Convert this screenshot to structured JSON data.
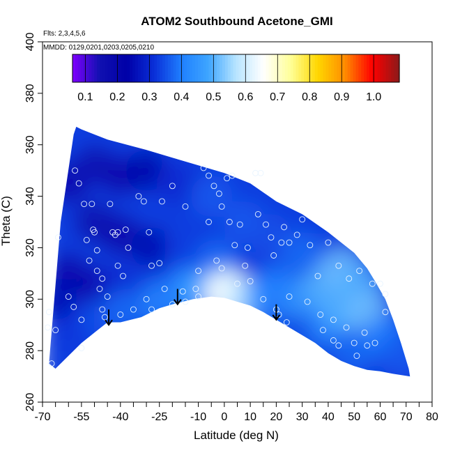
{
  "chart_data": {
    "type": "heatmap",
    "title": "ATOM2 Southbound Acetone_GMI",
    "annotations": {
      "flights": "Flts: 2,3,4,5,6",
      "dates": "MMDD: 0129,0201,0203,0205,0210"
    },
    "xlabel": "Latitude (deg N)",
    "ylabel": "Theta (C)",
    "xlim": [
      -70,
      80
    ],
    "ylim": [
      260,
      400
    ],
    "xticks_labeled": [
      -70,
      -55,
      -40,
      -25,
      -10,
      0,
      10,
      20,
      30,
      40,
      50,
      60,
      70,
      80
    ],
    "xticks_minor": [
      -65,
      -60,
      -50,
      -45,
      -35,
      -30,
      -20,
      -15,
      -5,
      5,
      15,
      25,
      35,
      45,
      55,
      65,
      75
    ],
    "yticks": [
      260,
      280,
      300,
      320,
      340,
      360,
      380,
      400
    ],
    "colorbar": {
      "ticks": [
        0.1,
        0.2,
        0.3,
        0.4,
        0.5,
        0.6,
        0.7,
        0.8,
        0.9,
        1.0
      ],
      "tick_labels": [
        "0.1",
        "0.2",
        "0.3",
        "0.4",
        "0.5",
        "0.6",
        "0.7",
        "0.8",
        "0.9",
        "1.0"
      ],
      "range": [
        0.06,
        1.08
      ],
      "colors": [
        "#7f00ff",
        "#1010b0",
        "#0000a8",
        "#0a2fd8",
        "#1f7fff",
        "#3fa6ff",
        "#b7e4ff",
        "#ffffff",
        "#ffff99",
        "#ffd700",
        "#ff8c00",
        "#ff0000",
        "#8b1a1a"
      ]
    },
    "domain_upper": [
      [
        -67.5,
        275
      ],
      [
        -63,
        330
      ],
      [
        -58,
        364
      ],
      [
        -57,
        367
      ],
      [
        -55,
        366
      ],
      [
        -45,
        362
      ],
      [
        -30,
        358
      ],
      [
        -20,
        355
      ],
      [
        -10,
        352
      ],
      [
        0,
        349
      ],
      [
        10,
        345
      ],
      [
        20,
        338
      ],
      [
        30,
        333
      ],
      [
        40,
        326
      ],
      [
        50,
        318
      ],
      [
        55,
        312
      ],
      [
        58,
        307
      ],
      [
        62,
        300
      ],
      [
        65,
        292
      ],
      [
        68,
        283
      ],
      [
        71,
        273
      ],
      [
        71.5,
        270
      ]
    ],
    "domain_lower": [
      [
        -67.5,
        275
      ],
      [
        -65,
        273
      ],
      [
        -60,
        278
      ],
      [
        -55,
        283
      ],
      [
        -50,
        287
      ],
      [
        -45,
        291
      ],
      [
        -40,
        291
      ],
      [
        -32,
        293
      ],
      [
        -25,
        296.5
      ],
      [
        -20,
        298
      ],
      [
        -12,
        300
      ],
      [
        -5,
        301
      ],
      [
        0,
        300.5
      ],
      [
        5,
        299
      ],
      [
        10,
        297.5
      ],
      [
        15,
        295
      ],
      [
        20,
        292
      ],
      [
        25,
        289
      ],
      [
        30,
        286
      ],
      [
        35,
        283
      ],
      [
        40,
        279
      ],
      [
        45,
        276
      ],
      [
        50,
        274
      ],
      [
        55,
        272.5
      ],
      [
        60,
        272
      ],
      [
        65,
        271
      ],
      [
        71.5,
        270
      ]
    ],
    "field": [
      {
        "lat": -60,
        "theta": 345,
        "value": 0.18
      },
      {
        "lat": -60,
        "theta": 310,
        "value": 0.19
      },
      {
        "lat": -58,
        "theta": 290,
        "value": 0.32
      },
      {
        "lat": -50,
        "theta": 352,
        "value": 0.16
      },
      {
        "lat": -50,
        "theta": 330,
        "value": 0.17
      },
      {
        "lat": -50,
        "theta": 305,
        "value": 0.2
      },
      {
        "lat": -48,
        "theta": 292,
        "value": 0.35
      },
      {
        "lat": -40,
        "theta": 348,
        "value": 0.18
      },
      {
        "lat": -40,
        "theta": 325,
        "value": 0.19
      },
      {
        "lat": -40,
        "theta": 305,
        "value": 0.3
      },
      {
        "lat": -38,
        "theta": 296,
        "value": 0.38
      },
      {
        "lat": -30,
        "theta": 350,
        "value": 0.22
      },
      {
        "lat": -28,
        "theta": 320,
        "value": 0.24
      },
      {
        "lat": -28,
        "theta": 305,
        "value": 0.33
      },
      {
        "lat": -25,
        "theta": 299,
        "value": 0.42
      },
      {
        "lat": -18,
        "theta": 345,
        "value": 0.3
      },
      {
        "lat": -15,
        "theta": 320,
        "value": 0.33
      },
      {
        "lat": -15,
        "theta": 305,
        "value": 0.4
      },
      {
        "lat": -10,
        "theta": 303,
        "value": 0.48
      },
      {
        "lat": -5,
        "theta": 340,
        "value": 0.36
      },
      {
        "lat": -3,
        "theta": 315,
        "value": 0.38
      },
      {
        "lat": 0,
        "theta": 305,
        "value": 0.55
      },
      {
        "lat": 0,
        "theta": 302,
        "value": 0.66
      },
      {
        "lat": 4,
        "theta": 301.5,
        "value": 0.64
      },
      {
        "lat": 8,
        "theta": 300,
        "value": 0.58
      },
      {
        "lat": 8,
        "theta": 330,
        "value": 0.36
      },
      {
        "lat": 15,
        "theta": 300,
        "value": 0.45
      },
      {
        "lat": 18,
        "theta": 325,
        "value": 0.35
      },
      {
        "lat": 20,
        "theta": 305,
        "value": 0.4
      },
      {
        "lat": 22,
        "theta": 293,
        "value": 0.38
      },
      {
        "lat": 30,
        "theta": 318,
        "value": 0.38
      },
      {
        "lat": 30,
        "theta": 300,
        "value": 0.45
      },
      {
        "lat": 30,
        "theta": 285,
        "value": 0.36
      },
      {
        "lat": 38,
        "theta": 305,
        "value": 0.5
      },
      {
        "lat": 40,
        "theta": 290,
        "value": 0.42
      },
      {
        "lat": 45,
        "theta": 312,
        "value": 0.52
      },
      {
        "lat": 45,
        "theta": 296,
        "value": 0.5
      },
      {
        "lat": 50,
        "theta": 280,
        "value": 0.38
      },
      {
        "lat": 52,
        "theta": 305,
        "value": 0.5
      },
      {
        "lat": 55,
        "theta": 295,
        "value": 0.52
      },
      {
        "lat": 62,
        "theta": 285,
        "value": 0.4
      },
      {
        "lat": 68,
        "theta": 278,
        "value": 0.36
      },
      {
        "lat": -65,
        "theta": 300,
        "value": 0.25
      },
      {
        "lat": 25,
        "theta": 285,
        "value": 0.34
      }
    ],
    "observations": [
      [
        -64,
        324
      ],
      [
        -67.5,
        295
      ],
      [
        -68,
        289
      ],
      [
        -66.5,
        275
      ],
      [
        -57.5,
        350
      ],
      [
        -56,
        345
      ],
      [
        -54,
        337
      ],
      [
        -53,
        323
      ],
      [
        -51,
        337
      ],
      [
        -52,
        315
      ],
      [
        -50.5,
        327
      ],
      [
        -50,
        326
      ],
      [
        -49,
        319
      ],
      [
        -48,
        304
      ],
      [
        -49,
        311
      ],
      [
        -47,
        308
      ],
      [
        -44,
        337
      ],
      [
        -43,
        326
      ],
      [
        -42,
        325
      ],
      [
        -41,
        313
      ],
      [
        -41,
        326
      ],
      [
        -39,
        309
      ],
      [
        -38,
        327
      ],
      [
        -37,
        320
      ],
      [
        -33,
        340
      ],
      [
        -31,
        338
      ],
      [
        -29,
        326
      ],
      [
        -28,
        313
      ],
      [
        -25,
        314
      ],
      [
        -24,
        338
      ],
      [
        -20,
        344
      ],
      [
        -15,
        336
      ],
      [
        -8,
        351
      ],
      [
        -6,
        348
      ],
      [
        -4,
        344
      ],
      [
        -2,
        341
      ],
      [
        1,
        347
      ],
      [
        3,
        348
      ],
      [
        -1,
        336
      ],
      [
        2,
        330
      ],
      [
        4,
        321
      ],
      [
        6,
        329
      ],
      [
        8,
        313
      ],
      [
        9,
        320
      ],
      [
        12,
        349
      ],
      [
        14,
        349
      ],
      [
        13,
        333
      ],
      [
        16,
        329
      ],
      [
        18,
        324
      ],
      [
        19,
        317
      ],
      [
        22,
        322
      ],
      [
        23,
        328
      ],
      [
        25,
        322
      ],
      [
        28,
        325
      ],
      [
        30,
        331
      ],
      [
        33,
        321
      ],
      [
        36,
        309
      ],
      [
        40,
        322
      ],
      [
        44,
        313
      ],
      [
        48,
        308
      ],
      [
        52,
        311
      ],
      [
        57,
        306
      ],
      [
        60,
        306
      ],
      [
        62,
        302
      ],
      [
        -60,
        301
      ],
      [
        -58,
        297
      ],
      [
        -55,
        292
      ],
      [
        -55,
        281
      ],
      [
        -65,
        288
      ],
      [
        -6,
        330
      ],
      [
        -3,
        315
      ],
      [
        -1,
        312
      ],
      [
        10,
        307
      ],
      [
        15,
        300
      ],
      [
        -10,
        311
      ],
      [
        -11,
        304
      ],
      [
        -10,
        301
      ],
      [
        20,
        296
      ],
      [
        21,
        294
      ],
      [
        24,
        291
      ],
      [
        32,
        299
      ],
      [
        37,
        294
      ],
      [
        42,
        292
      ],
      [
        47,
        289
      ],
      [
        50,
        283
      ],
      [
        55,
        282
      ],
      [
        51,
        278
      ],
      [
        44,
        282
      ],
      [
        62,
        295
      ],
      [
        54,
        287
      ],
      [
        58,
        283
      ],
      [
        38,
        288
      ],
      [
        42,
        284
      ],
      [
        25,
        301
      ],
      [
        -30,
        300
      ],
      [
        -28,
        296
      ],
      [
        -35,
        296
      ],
      [
        -40,
        294
      ],
      [
        -46,
        293
      ],
      [
        -45,
        301
      ],
      [
        -47,
        296
      ],
      [
        -20,
        298
      ],
      [
        -15,
        299
      ],
      [
        -16,
        303
      ],
      [
        -23,
        304
      ],
      [
        5,
        306
      ]
    ],
    "arrows": [
      {
        "lat": -44.5,
        "theta_top": 296,
        "theta_tip": 290
      },
      {
        "lat": -18,
        "theta_top": 304,
        "theta_tip": 298
      },
      {
        "lat": 20,
        "theta_top": 298,
        "theta_tip": 292
      }
    ]
  }
}
